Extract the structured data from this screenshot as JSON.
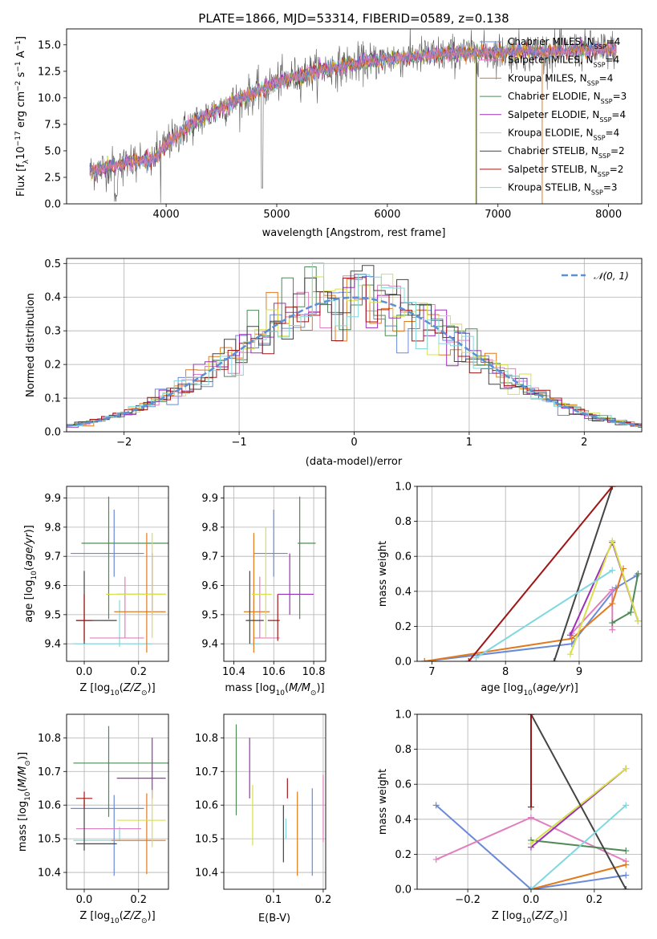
{
  "colors": {
    "chabrier_miles": "#6a8ad8",
    "salpeter_miles": "#e07fbf",
    "kroupa_miles": "#e07a1f",
    "chabrier_elodie": "#4e8a56",
    "salpeter_elodie": "#9b30b8",
    "kroupa_elodie": "#d6e04a",
    "chabrier_stelib": "#444444",
    "salpeter_stelib": "#a01515",
    "kroupa_stelib": "#7fd8df",
    "gaussian": "#5b8fd6"
  },
  "chart_data": [
    {
      "id": "spectrum",
      "type": "line",
      "title": "PLATE=1866, MJD=53314, FIBERID=0589, z=0.138",
      "xlabel": "wavelength [Angstrom, rest frame]",
      "ylabel": "Flux [f_λ10^-17 erg cm^-2 s^-1 A^-1]",
      "xlim": [
        3100,
        8300
      ],
      "ylim": [
        0,
        16.5
      ],
      "xticks": [
        "4000",
        "5000",
        "6000",
        "7000",
        "8000"
      ],
      "yticks": [
        "0.0",
        "2.5",
        "5.0",
        "7.5",
        "10.0",
        "12.5",
        "15.0"
      ],
      "x_range": [
        3310,
        8070
      ],
      "continuum": {
        "x": [
          3310,
          3500,
          3700,
          3900,
          4000,
          4200,
          4500,
          4800,
          5000,
          5300,
          5600,
          6000,
          6500,
          7000,
          7500,
          8070
        ],
        "y": [
          3.0,
          3.6,
          4.0,
          4.3,
          5.6,
          7.3,
          9.1,
          10.5,
          11.5,
          12.4,
          13.0,
          13.7,
          14.1,
          14.3,
          14.4,
          14.6
        ]
      },
      "legend": [
        {
          "label": "Chabrier MILES, N",
          "sub": "SSP",
          "tail": "=4",
          "color_key": "chabrier_miles"
        },
        {
          "label": "Salpeter MILES, N",
          "sub": "SSP",
          "tail": "=4",
          "color_key": "salpeter_miles"
        },
        {
          "label": "Kroupa MILES, N",
          "sub": "SSP",
          "tail": "=4",
          "color_key": "kroupa_miles"
        },
        {
          "label": "Chabrier ELODIE, N",
          "sub": "SSP",
          "tail": "=3",
          "color_key": "chabrier_elodie"
        },
        {
          "label": "Salpeter ELODIE, N",
          "sub": "SSP",
          "tail": "=4",
          "color_key": "salpeter_elodie"
        },
        {
          "label": "Kroupa ELODIE, N",
          "sub": "SSP",
          "tail": "=4",
          "color_key": "kroupa_elodie"
        },
        {
          "label": "Chabrier STELIB, N",
          "sub": "SSP",
          "tail": "=2",
          "color_key": "chabrier_stelib"
        },
        {
          "label": "Salpeter STELIB, N",
          "sub": "SSP",
          "tail": "=2",
          "color_key": "salpeter_stelib"
        },
        {
          "label": "Kroupa STELIB, N",
          "sub": "SSP",
          "tail": "=3",
          "color_key": "kroupa_stelib"
        }
      ]
    },
    {
      "id": "residuals",
      "type": "bar",
      "xlabel": "(data-model)/error",
      "ylabel": "Normed distribution",
      "xlim": [
        -2.5,
        2.5
      ],
      "ylim": [
        0,
        0.515
      ],
      "xticks": [
        "−2",
        "−1",
        "0",
        "1",
        "2"
      ],
      "yticks": [
        "0.0",
        "0.1",
        "0.2",
        "0.3",
        "0.4",
        "0.5"
      ],
      "legend_label": "𝒩(0, 1)",
      "spike": {
        "x": -0.35,
        "width": 0.1,
        "value": 0.49
      },
      "gaussian": {
        "mean": 0,
        "sigma": 1
      }
    },
    {
      "id": "age_vs_Z",
      "type": "scatter",
      "xlabel": "Z [log10(Z/Z⊙)]",
      "ylabel": "age [log10(age/yr)]",
      "xlim": [
        -0.065,
        0.31
      ],
      "ylim": [
        9.34,
        9.94
      ],
      "xticks": [
        "0.0",
        "0.2"
      ],
      "yticks": [
        "9.4",
        "9.5",
        "9.6",
        "9.7",
        "9.8",
        "9.9"
      ],
      "crosses": [
        {
          "color_key": "chabrier_miles",
          "x": 0.11,
          "y": 9.71,
          "xerr": [
            0.16,
            0.11
          ],
          "yerr": [
            0.08,
            0.15
          ]
        },
        {
          "color_key": "kroupa_stelib",
          "x": 0.13,
          "y": 9.4,
          "xerr": [
            0.17,
            0.12
          ],
          "yerr": [
            0.01,
            0.15
          ]
        },
        {
          "color_key": "chabrier_elodie",
          "x": 0.09,
          "y": 9.745,
          "xerr": [
            0.1,
            0.22
          ],
          "yerr": [
            0.26,
            0.16
          ]
        },
        {
          "color_key": "salpeter_elodie",
          "x": 0.25,
          "y": 9.57,
          "xerr": [
            0.13,
            0.05
          ],
          "yerr": [
            0.07,
            0.14
          ]
        },
        {
          "color_key": "salpeter_miles",
          "x": 0.15,
          "y": 9.42,
          "xerr": [
            0.13,
            0.07
          ],
          "yerr": [
            0.0,
            0.21
          ]
        },
        {
          "color_key": "kroupa_miles",
          "x": 0.23,
          "y": 9.51,
          "xerr": [
            0.12,
            0.07
          ],
          "yerr": [
            0.14,
            0.27
          ]
        },
        {
          "color_key": "kroupa_elodie",
          "x": 0.25,
          "y": 9.57,
          "xerr": [
            0.17,
            0.05
          ],
          "yerr": [
            0.15,
            0.21
          ]
        },
        {
          "color_key": "chabrier_stelib",
          "x": 0.0,
          "y": 9.48,
          "xerr": [
            0.03,
            0.12
          ],
          "yerr": [
            0.08,
            0.17
          ]
        },
        {
          "color_key": "salpeter_stelib",
          "x": 0.0,
          "y": 9.48,
          "xerr": [
            0.03,
            0.03
          ],
          "yerr": [
            0.07,
            0.09
          ]
        }
      ]
    },
    {
      "id": "age_vs_mass",
      "type": "scatter",
      "xlabel": "mass [log10(M/M⊙)]",
      "ylabel": "",
      "xlim": [
        10.35,
        10.86
      ],
      "ylim": [
        9.34,
        9.94
      ],
      "xticks": [
        "10.4",
        "10.6",
        "10.8"
      ],
      "yticks": [
        "9.4",
        "9.5",
        "9.6",
        "9.7",
        "9.8",
        "9.9"
      ],
      "crosses": [
        {
          "color_key": "chabrier_miles",
          "x": 10.6,
          "y": 9.71,
          "xerr": [
            0.1,
            0.07
          ],
          "yerr": [
            0.08,
            0.15
          ]
        },
        {
          "color_key": "kroupa_stelib",
          "x": 10.5,
          "y": 9.4,
          "xerr": [
            0.02,
            0.03
          ],
          "yerr": [
            0.01,
            0.15
          ]
        },
        {
          "color_key": "chabrier_elodie",
          "x": 10.73,
          "y": 9.745,
          "xerr": [
            0.01,
            0.08
          ],
          "yerr": [
            0.26,
            0.16
          ]
        },
        {
          "color_key": "salpeter_elodie",
          "x": 10.68,
          "y": 9.57,
          "xerr": [
            0.06,
            0.12
          ],
          "yerr": [
            0.07,
            0.14
          ]
        },
        {
          "color_key": "salpeter_miles",
          "x": 10.53,
          "y": 9.42,
          "xerr": [
            0.03,
            0.1
          ],
          "yerr": [
            0.0,
            0.21
          ]
        },
        {
          "color_key": "kroupa_miles",
          "x": 10.5,
          "y": 9.51,
          "xerr": [
            0.05,
            0.08
          ],
          "yerr": [
            0.14,
            0.27
          ]
        },
        {
          "color_key": "kroupa_elodie",
          "x": 10.56,
          "y": 9.57,
          "xerr": [
            0.07,
            0.03
          ],
          "yerr": [
            0.15,
            0.23
          ]
        },
        {
          "color_key": "chabrier_stelib",
          "x": 10.48,
          "y": 9.48,
          "xerr": [
            0.02,
            0.07
          ],
          "yerr": [
            0.08,
            0.17
          ]
        },
        {
          "color_key": "salpeter_stelib",
          "x": 10.62,
          "y": 9.48,
          "xerr": [
            0.05,
            0.01
          ],
          "yerr": [
            0.07,
            0.09
          ]
        }
      ]
    },
    {
      "id": "weight_vs_age",
      "type": "line",
      "xlabel": "age [log10(age/yr)]",
      "ylabel": "mass weight",
      "xlim": [
        6.8,
        9.85
      ],
      "ylim": [
        0,
        1.0
      ],
      "xticks": [
        "7",
        "8",
        "9"
      ],
      "yticks": [
        "0.0",
        "0.2",
        "0.4",
        "0.6",
        "0.8",
        "1.0"
      ],
      "series": [
        {
          "color_key": "chabrier_miles",
          "x": [
            6.9,
            8.9,
            9.5,
            9.78
          ],
          "y": [
            0.0,
            0.1,
            0.42,
            0.49
          ]
        },
        {
          "color_key": "salpeter_miles",
          "x": [
            8.9,
            9.45,
            9.45
          ],
          "y": [
            0.16,
            0.41,
            0.18
          ]
        },
        {
          "color_key": "kroupa_miles",
          "x": [
            6.9,
            8.9,
            9.45,
            9.6
          ],
          "y": [
            0.0,
            0.13,
            0.33,
            0.53
          ]
        },
        {
          "color_key": "chabrier_elodie",
          "x": [
            9.45,
            9.7,
            9.8
          ],
          "y": [
            0.22,
            0.28,
            0.5
          ]
        },
        {
          "color_key": "salpeter_elodie",
          "x": [
            8.88,
            9.45,
            9.8
          ],
          "y": [
            0.15,
            0.68,
            0.23
          ]
        },
        {
          "color_key": "kroupa_elodie",
          "x": [
            8.88,
            9.45,
            9.8
          ],
          "y": [
            0.04,
            0.69,
            0.23
          ]
        },
        {
          "color_key": "chabrier_stelib",
          "x": [
            8.66,
            9.45
          ],
          "y": [
            0.0,
            1.0
          ]
        },
        {
          "color_key": "salpeter_stelib",
          "x": [
            7.5,
            9.45
          ],
          "y": [
            0.0,
            1.0
          ]
        },
        {
          "color_key": "kroupa_stelib",
          "x": [
            7.6,
            9.45
          ],
          "y": [
            0.02,
            0.52
          ]
        }
      ]
    },
    {
      "id": "mass_vs_Z",
      "type": "scatter",
      "xlabel": "Z [log10(Z/Z⊙)]",
      "ylabel": "mass [log10(M/M⊙)]",
      "xlim": [
        -0.065,
        0.31
      ],
      "ylim": [
        10.35,
        10.87
      ],
      "xticks": [
        "0.0",
        "0.2"
      ],
      "yticks": [
        "10.4",
        "10.5",
        "10.6",
        "10.7",
        "10.8"
      ],
      "crosses": [
        {
          "color_key": "chabrier_miles",
          "x": 0.11,
          "y": 10.59,
          "xerr": [
            0.16,
            0.11
          ],
          "yerr": [
            0.2,
            0.04
          ]
        },
        {
          "color_key": "kroupa_stelib",
          "x": 0.13,
          "y": 10.495,
          "xerr": [
            0.17,
            0.12
          ],
          "yerr": [
            0.0,
            0.04
          ]
        },
        {
          "color_key": "chabrier_elodie",
          "x": 0.09,
          "y": 10.725,
          "xerr": [
            0.13,
            0.22
          ],
          "yerr": [
            0.16,
            0.11
          ]
        },
        {
          "color_key": "salpeter_elodie",
          "x": 0.25,
          "y": 10.68,
          "xerr": [
            0.13,
            0.05
          ],
          "yerr": [
            0.06,
            0.12
          ]
        },
        {
          "color_key": "salpeter_miles",
          "x": 0.15,
          "y": 10.53,
          "xerr": [
            0.18,
            0.06
          ],
          "yerr": [
            0.0,
            0.0
          ]
        },
        {
          "color_key": "kroupa_miles",
          "x": 0.23,
          "y": 10.495,
          "xerr": [
            0.13,
            0.07
          ],
          "yerr": [
            0.1,
            0.14
          ]
        },
        {
          "color_key": "kroupa_elodie",
          "x": 0.25,
          "y": 10.555,
          "xerr": [
            0.13,
            0.05
          ],
          "yerr": [
            0.08,
            0.09
          ]
        },
        {
          "color_key": "chabrier_stelib",
          "x": 0.0,
          "y": 10.485,
          "xerr": [
            0.03,
            0.12
          ],
          "yerr": [
            0.02,
            0.13
          ]
        },
        {
          "color_key": "salpeter_stelib",
          "x": 0.0,
          "y": 10.62,
          "xerr": [
            0.03,
            0.03
          ],
          "yerr": [
            0.03,
            0.02
          ]
        }
      ]
    },
    {
      "id": "mass_vs_EBV",
      "type": "scatter",
      "xlabel": "E(B-V)",
      "ylabel": "",
      "xlim": [
        0.0,
        0.205
      ],
      "ylim": [
        10.35,
        10.87
      ],
      "xticks": [
        "0.1",
        "0.2"
      ],
      "yticks": [
        "10.4",
        "10.5",
        "10.6",
        "10.7",
        "10.8"
      ],
      "crosses": [
        {
          "color_key": "chabrier_elodie",
          "x": 0.025,
          "y": 10.7,
          "yerr": [
            0.13,
            0.14
          ]
        },
        {
          "color_key": "salpeter_elodie",
          "x": 0.052,
          "y": 10.71,
          "yerr": [
            0.09,
            0.09
          ]
        },
        {
          "color_key": "kroupa_elodie",
          "x": 0.058,
          "y": 10.57,
          "yerr": [
            0.09,
            0.09
          ]
        },
        {
          "color_key": "chabrier_stelib",
          "x": 0.12,
          "y": 10.5,
          "yerr": [
            0.07,
            0.1
          ]
        },
        {
          "color_key": "kroupa_stelib",
          "x": 0.125,
          "y": 10.5,
          "yerr": [
            0.0,
            0.06
          ]
        },
        {
          "color_key": "salpeter_stelib",
          "x": 0.128,
          "y": 10.64,
          "yerr": [
            0.02,
            0.04
          ]
        },
        {
          "color_key": "kroupa_miles",
          "x": 0.148,
          "y": 10.52,
          "yerr": [
            0.13,
            0.12
          ]
        },
        {
          "color_key": "chabrier_miles",
          "x": 0.178,
          "y": 10.52,
          "yerr": [
            0.13,
            0.13
          ]
        },
        {
          "color_key": "salpeter_miles",
          "x": 0.2,
          "y": 10.59,
          "yerr": [
            0.1,
            0.1
          ]
        }
      ]
    },
    {
      "id": "weight_vs_Z",
      "type": "line",
      "xlabel": "Z [log10(Z/Z⊙)]",
      "ylabel": "mass weight",
      "xlim": [
        -0.36,
        0.35
      ],
      "ylim": [
        0,
        1.0
      ],
      "xticks": [
        "−0.2",
        "0.0",
        "0.2"
      ],
      "yticks": [
        "0.0",
        "0.2",
        "0.4",
        "0.6",
        "0.8",
        "1.0"
      ],
      "series": [
        {
          "color_key": "chabrier_miles",
          "x": [
            -0.3,
            0.0,
            0.3
          ],
          "y": [
            0.48,
            0.0,
            0.08
          ]
        },
        {
          "color_key": "salpeter_miles",
          "x": [
            -0.3,
            0.0,
            0.3
          ],
          "y": [
            0.17,
            0.41,
            0.16
          ]
        },
        {
          "color_key": "kroupa_miles",
          "x": [
            0.0,
            0.3
          ],
          "y": [
            0.0,
            0.14
          ]
        },
        {
          "color_key": "chabrier_elodie",
          "x": [
            0.0,
            0.3
          ],
          "y": [
            0.28,
            0.22
          ]
        },
        {
          "color_key": "salpeter_elodie",
          "x": [
            0.0,
            0.3
          ],
          "y": [
            0.24,
            0.69
          ]
        },
        {
          "color_key": "kroupa_elodie",
          "x": [
            0.0,
            0.3
          ],
          "y": [
            0.26,
            0.69
          ]
        },
        {
          "color_key": "chabrier_stelib",
          "x": [
            0.0,
            0.3
          ],
          "y": [
            1.0,
            0.0
          ]
        },
        {
          "color_key": "salpeter_stelib",
          "x": [
            0.0,
            0.0
          ],
          "y": [
            0.47,
            1.0
          ]
        },
        {
          "color_key": "kroupa_stelib",
          "x": [
            0.0,
            0.3
          ],
          "y": [
            0.0,
            0.48
          ]
        }
      ]
    }
  ]
}
